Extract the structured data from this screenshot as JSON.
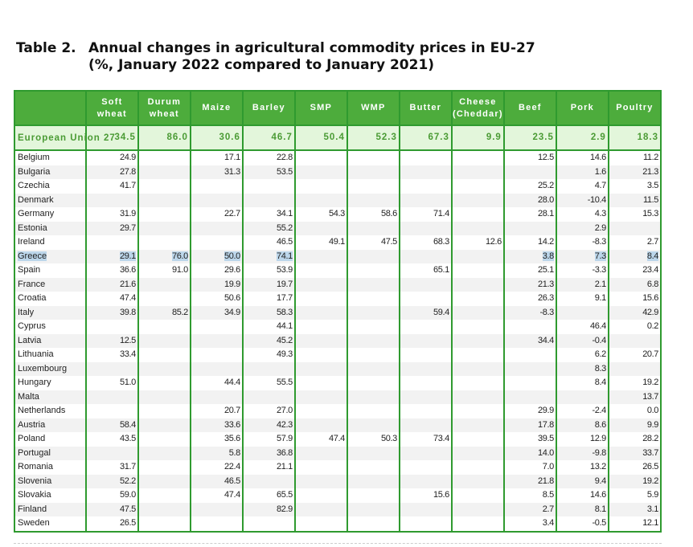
{
  "title": {
    "number": "Table 2.",
    "line1": "Annual changes in agricultural commodity prices in EU-27",
    "line2": "(%, January 2022 compared to January 2021)"
  },
  "columns": [
    "Soft wheat",
    "Durum wheat",
    "Maize",
    "Barley",
    "SMP",
    "WMP",
    "Butter",
    "Cheese (Cheddar)",
    "Beef",
    "Pork",
    "Poultry"
  ],
  "eu": {
    "name": "European Union 27",
    "values": [
      "34.5",
      "86.0",
      "30.6",
      "46.7",
      "50.4",
      "52.3",
      "67.3",
      "9.9",
      "23.5",
      "2.9",
      "18.3"
    ]
  },
  "highlighted_row": "Greece",
  "colors": {
    "header_bg": "#4dac3c",
    "border": "#2f9a2f",
    "eu_bg": "#e3f6db",
    "eu_text": "#4a9b34",
    "selection": "#bcd6ea"
  },
  "rows": [
    {
      "country": "Belgium",
      "values": [
        "24.9",
        "",
        "17.1",
        "22.8",
        "",
        "",
        "",
        "",
        "12.5",
        "14.6",
        "11.2"
      ]
    },
    {
      "country": "Bulgaria",
      "values": [
        "27.8",
        "",
        "31.3",
        "53.5",
        "",
        "",
        "",
        "",
        "",
        "1.6",
        "21.3"
      ]
    },
    {
      "country": "Czechia",
      "values": [
        "41.7",
        "",
        "",
        "",
        "",
        "",
        "",
        "",
        "25.2",
        "4.7",
        "3.5"
      ]
    },
    {
      "country": "Denmark",
      "values": [
        "",
        "",
        "",
        "",
        "",
        "",
        "",
        "",
        "28.0",
        "-10.4",
        "11.5"
      ]
    },
    {
      "country": "Germany",
      "values": [
        "31.9",
        "",
        "22.7",
        "34.1",
        "54.3",
        "58.6",
        "71.4",
        "",
        "28.1",
        "4.3",
        "15.3"
      ]
    },
    {
      "country": "Estonia",
      "values": [
        "29.7",
        "",
        "",
        "55.2",
        "",
        "",
        "",
        "",
        "",
        "2.9",
        ""
      ]
    },
    {
      "country": "Ireland",
      "values": [
        "",
        "",
        "",
        "46.5",
        "49.1",
        "47.5",
        "68.3",
        "12.6",
        "14.2",
        "-8.3",
        "2.7"
      ]
    },
    {
      "country": "Greece",
      "values": [
        "29.1",
        "76.0",
        "50.0",
        "74.1",
        "",
        "",
        "",
        "",
        "3.8",
        "7.3",
        "8.4"
      ]
    },
    {
      "country": "Spain",
      "values": [
        "36.6",
        "91.0",
        "29.6",
        "53.9",
        "",
        "",
        "65.1",
        "",
        "25.1",
        "-3.3",
        "23.4"
      ]
    },
    {
      "country": "France",
      "values": [
        "21.6",
        "",
        "19.9",
        "19.7",
        "",
        "",
        "",
        "",
        "21.3",
        "2.1",
        "6.8"
      ]
    },
    {
      "country": "Croatia",
      "values": [
        "47.4",
        "",
        "50.6",
        "17.7",
        "",
        "",
        "",
        "",
        "26.3",
        "9.1",
        "15.6"
      ]
    },
    {
      "country": "Italy",
      "values": [
        "39.8",
        "85.2",
        "34.9",
        "58.3",
        "",
        "",
        "59.4",
        "",
        "-8.3",
        "",
        "42.9"
      ]
    },
    {
      "country": "Cyprus",
      "values": [
        "",
        "",
        "",
        "44.1",
        "",
        "",
        "",
        "",
        "",
        "46.4",
        "0.2"
      ]
    },
    {
      "country": "Latvia",
      "values": [
        "12.5",
        "",
        "",
        "45.2",
        "",
        "",
        "",
        "",
        "34.4",
        "-0.4",
        ""
      ]
    },
    {
      "country": "Lithuania",
      "values": [
        "33.4",
        "",
        "",
        "49.3",
        "",
        "",
        "",
        "",
        "",
        "6.2",
        "20.7"
      ]
    },
    {
      "country": "Luxembourg",
      "values": [
        "",
        "",
        "",
        "",
        "",
        "",
        "",
        "",
        "",
        "8.3",
        ""
      ]
    },
    {
      "country": "Hungary",
      "values": [
        "51.0",
        "",
        "44.4",
        "55.5",
        "",
        "",
        "",
        "",
        "",
        "8.4",
        "19.2"
      ]
    },
    {
      "country": "Malta",
      "values": [
        "",
        "",
        "",
        "",
        "",
        "",
        "",
        "",
        "",
        "",
        "13.7"
      ]
    },
    {
      "country": "Netherlands",
      "values": [
        "",
        "",
        "20.7",
        "27.0",
        "",
        "",
        "",
        "",
        "29.9",
        "-2.4",
        "0.0"
      ]
    },
    {
      "country": "Austria",
      "values": [
        "58.4",
        "",
        "33.6",
        "42.3",
        "",
        "",
        "",
        "",
        "17.8",
        "8.6",
        "9.9"
      ]
    },
    {
      "country": "Poland",
      "values": [
        "43.5",
        "",
        "35.6",
        "57.9",
        "47.4",
        "50.3",
        "73.4",
        "",
        "39.5",
        "12.9",
        "28.2"
      ]
    },
    {
      "country": "Portugal",
      "values": [
        "",
        "",
        "5.8",
        "36.8",
        "",
        "",
        "",
        "",
        "14.0",
        "-9.8",
        "33.7"
      ]
    },
    {
      "country": "Romania",
      "values": [
        "31.7",
        "",
        "22.4",
        "21.1",
        "",
        "",
        "",
        "",
        "7.0",
        "13.2",
        "26.5"
      ]
    },
    {
      "country": "Slovenia",
      "values": [
        "52.2",
        "",
        "46.5",
        "",
        "",
        "",
        "",
        "",
        "21.8",
        "9.4",
        "19.2"
      ]
    },
    {
      "country": "Slovakia",
      "values": [
        "59.0",
        "",
        "47.4",
        "65.5",
        "",
        "",
        "15.6",
        "",
        "8.5",
        "14.6",
        "5.9"
      ]
    },
    {
      "country": "Finland",
      "values": [
        "47.5",
        "",
        "",
        "82.9",
        "",
        "",
        "",
        "",
        "2.7",
        "8.1",
        "3.1"
      ]
    },
    {
      "country": "Sweden",
      "values": [
        "26.5",
        "",
        "",
        "",
        "",
        "",
        "",
        "",
        "3.4",
        "-0.5",
        "12.1"
      ]
    }
  ]
}
